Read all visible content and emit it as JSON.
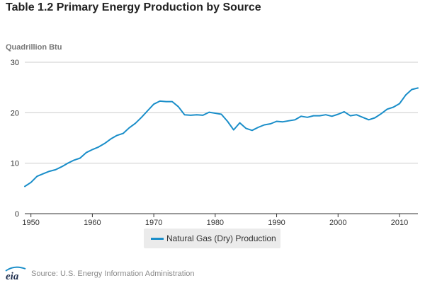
{
  "title": "Table 1.2 Primary Energy Production by Source",
  "units": "Quadrillion Btu",
  "legend": {
    "label": "Natural Gas (Dry) Production"
  },
  "footer": {
    "logo_text": "eia",
    "source": "Source: U.S. Energy Information Administration"
  },
  "colors": {
    "series": "#1a8ec9",
    "grid": "#cccccc",
    "axis": "#333333"
  },
  "chart_data": {
    "type": "line",
    "title": "Table 1.2 Primary Energy Production by Source",
    "ylabel": "Quadrillion Btu",
    "xlabel": "",
    "xlim": [
      1949,
      2013
    ],
    "ylim": [
      0,
      30
    ],
    "x_ticks": [
      1950,
      1960,
      1970,
      1980,
      1990,
      2000,
      2010
    ],
    "y_ticks": [
      0,
      10,
      20,
      30
    ],
    "grid": "horizontal",
    "legend_position": "bottom-center",
    "series": [
      {
        "name": "Natural Gas (Dry) Production",
        "x": [
          1949,
          1950,
          1951,
          1952,
          1953,
          1954,
          1955,
          1956,
          1957,
          1958,
          1959,
          1960,
          1961,
          1962,
          1963,
          1964,
          1965,
          1966,
          1967,
          1968,
          1969,
          1970,
          1971,
          1972,
          1973,
          1974,
          1975,
          1976,
          1977,
          1978,
          1979,
          1980,
          1981,
          1982,
          1983,
          1984,
          1985,
          1986,
          1987,
          1988,
          1989,
          1990,
          1991,
          1992,
          1993,
          1994,
          1995,
          1996,
          1997,
          1998,
          1999,
          2000,
          2001,
          2002,
          2003,
          2004,
          2005,
          2006,
          2007,
          2008,
          2009,
          2010,
          2011,
          2012,
          2013
        ],
        "values": [
          5.4,
          6.2,
          7.4,
          7.9,
          8.4,
          8.7,
          9.3,
          10.0,
          10.6,
          11.0,
          12.1,
          12.7,
          13.2,
          13.9,
          14.8,
          15.5,
          15.9,
          17.0,
          17.9,
          19.1,
          20.4,
          21.7,
          22.3,
          22.2,
          22.2,
          21.2,
          19.6,
          19.5,
          19.6,
          19.5,
          20.1,
          19.9,
          19.7,
          18.3,
          16.6,
          18.0,
          16.9,
          16.5,
          17.1,
          17.6,
          17.8,
          18.3,
          18.2,
          18.4,
          18.6,
          19.3,
          19.1,
          19.4,
          19.4,
          19.6,
          19.3,
          19.7,
          20.2,
          19.4,
          19.6,
          19.1,
          18.6,
          19.0,
          19.8,
          20.7,
          21.1,
          21.8,
          23.5,
          24.6,
          24.9
        ]
      }
    ]
  }
}
